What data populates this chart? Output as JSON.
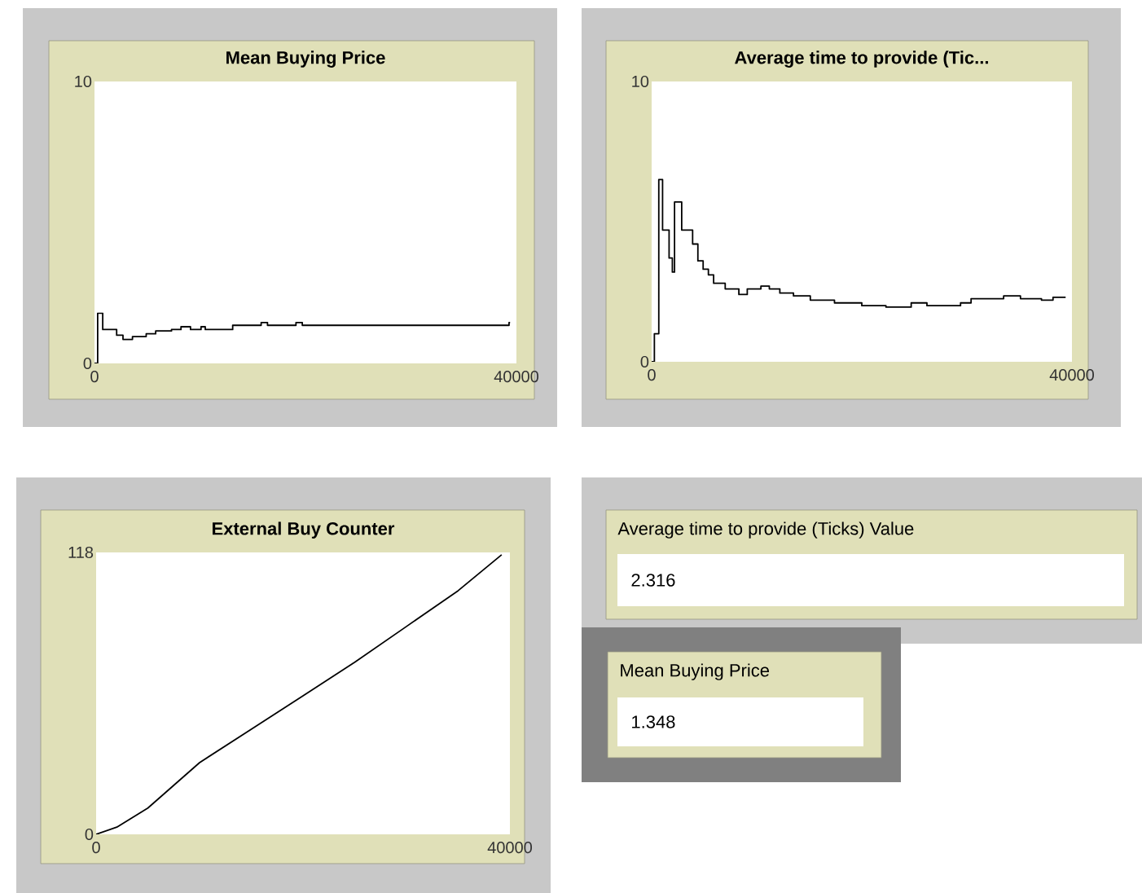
{
  "chart_data": [
    {
      "type": "step",
      "title": "Mean Buying Price",
      "xlim": [
        0,
        40000
      ],
      "ylim": [
        0,
        10
      ],
      "xticks": [
        0,
        40000
      ],
      "yticks": [
        0,
        10
      ],
      "grid": false,
      "marker": "none",
      "series": [
        {
          "color": "#000000",
          "x": [
            0,
            300,
            780,
            2100,
            2700,
            3600,
            4900,
            5800,
            7300,
            8200,
            9100,
            10100,
            10500,
            13100,
            15800,
            16400,
            19100,
            19700,
            39300,
            39400
          ],
          "values": [
            0,
            1.78,
            1.2,
            1.0,
            0.85,
            0.95,
            1.05,
            1.15,
            1.2,
            1.3,
            1.2,
            1.3,
            1.2,
            1.35,
            1.45,
            1.35,
            1.45,
            1.35,
            1.45,
            1.45
          ]
        }
      ]
    },
    {
      "type": "step",
      "title": "Average time to provide (Tic...",
      "xlim": [
        0,
        40000
      ],
      "ylim": [
        0,
        10
      ],
      "xticks": [
        0,
        40000
      ],
      "yticks": [
        0,
        10
      ],
      "grid": false,
      "marker": "none",
      "series": [
        {
          "color": "#000000",
          "x": [
            0,
            260,
            680,
            1040,
            1660,
            1970,
            2180,
            2860,
            3900,
            4400,
            4900,
            5400,
            5900,
            7000,
            8300,
            9100,
            10400,
            11200,
            12200,
            13500,
            15100,
            17400,
            20000,
            22300,
            24700,
            26200,
            29400,
            30400,
            33500,
            35100,
            37100,
            38200,
            39400
          ],
          "values": [
            0,
            1.0,
            6.5,
            4.7,
            3.7,
            3.2,
            5.7,
            4.7,
            4.2,
            3.6,
            3.3,
            3.1,
            2.8,
            2.6,
            2.4,
            2.6,
            2.7,
            2.6,
            2.45,
            2.35,
            2.2,
            2.1,
            2.0,
            1.95,
            2.1,
            2.0,
            2.1,
            2.25,
            2.35,
            2.25,
            2.2,
            2.3,
            2.3
          ]
        }
      ]
    },
    {
      "type": "line",
      "title": "External Buy Counter",
      "xlim": [
        0,
        40000
      ],
      "ylim": [
        0,
        118
      ],
      "xticks": [
        0,
        40000
      ],
      "yticks": [
        0,
        118
      ],
      "grid": false,
      "marker": "none",
      "series": [
        {
          "color": "#000000",
          "x": [
            0,
            2000,
            5000,
            10000,
            15000,
            20000,
            25000,
            30000,
            35000,
            39200
          ],
          "values": [
            0,
            3,
            11,
            30,
            44,
            58,
            72,
            87,
            102,
            117
          ]
        }
      ]
    },
    {
      "type": "other",
      "title": "Average time to provide (Ticks) Value",
      "annotations": [
        "2.316"
      ]
    },
    {
      "type": "other",
      "title": "Mean Buying Price",
      "annotations": [
        "1.348"
      ]
    }
  ]
}
